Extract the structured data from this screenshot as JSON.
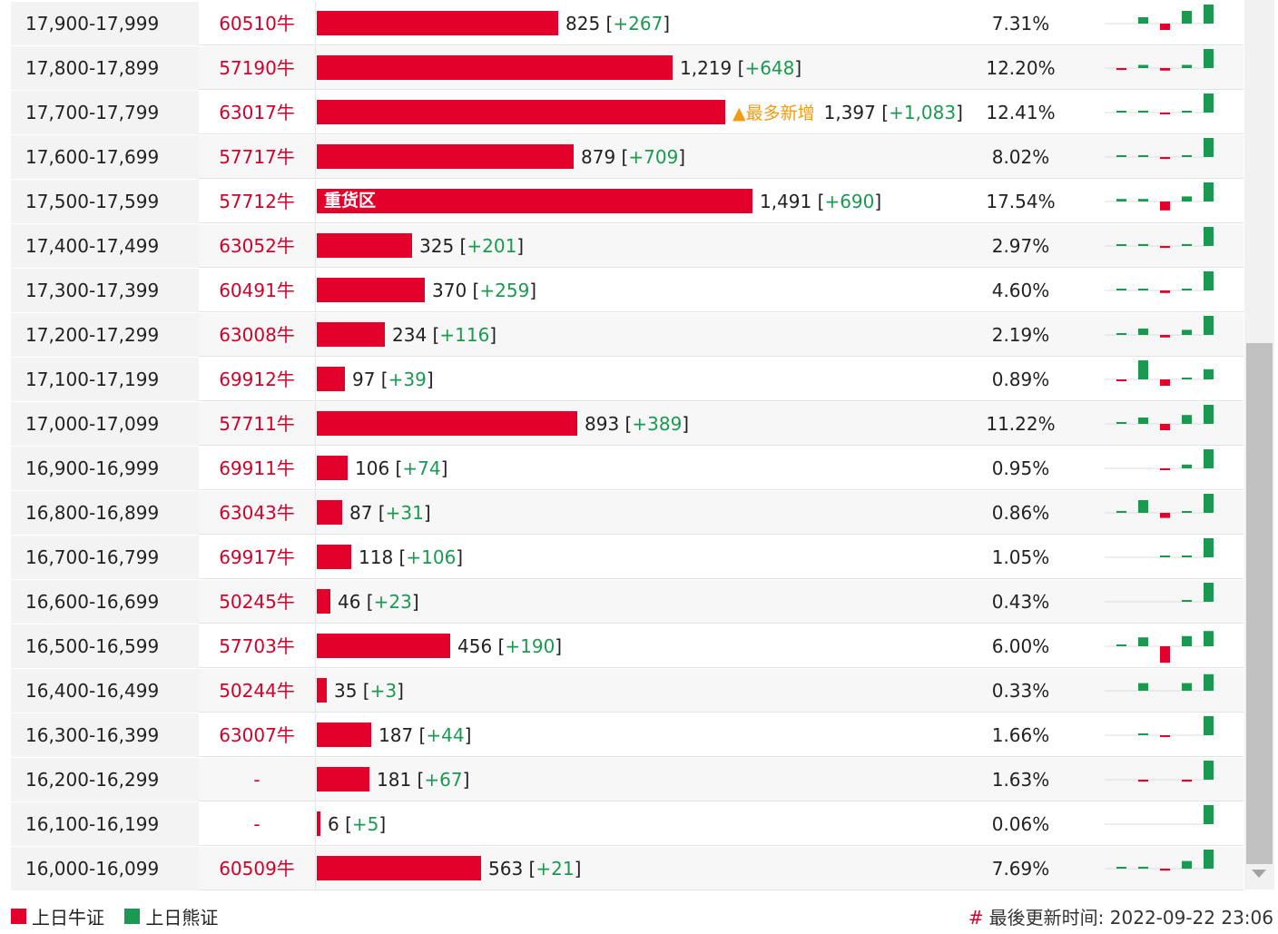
{
  "colors": {
    "bull": "#e3002a",
    "bear": "#1a9a50",
    "most": "#f29b13"
  },
  "rows": [
    {
      "range": "17,900-17,999",
      "code": "60510牛",
      "count": "825",
      "change": "+267",
      "bar": 825,
      "pct": "7.31%",
      "spark": [
        0,
        1,
        -1,
        2,
        3
      ]
    },
    {
      "range": "17,800-17,899",
      "code": "57190牛",
      "count": "1,219",
      "change": "+648",
      "bar": 1219,
      "pct": "12.20%",
      "spark": [
        -0.3,
        0.5,
        -0.4,
        0.5,
        3
      ]
    },
    {
      "range": "17,700-17,799",
      "code": "63017牛",
      "count": "1,397",
      "change": "+1,083",
      "bar": 1397,
      "pct": "12.41%",
      "most": "▲最多新增",
      "spark": [
        0.2,
        0.3,
        -0.2,
        0.2,
        3
      ]
    },
    {
      "range": "17,600-17,699",
      "code": "57717牛",
      "count": "879",
      "change": "+709",
      "bar": 879,
      "pct": "8.02%",
      "spark": [
        0.2,
        0.2,
        -0.3,
        0.2,
        3
      ]
    },
    {
      "range": "17,500-17,599",
      "code": "57712牛",
      "count": "1,491",
      "change": "+690",
      "bar": 1491,
      "pct": "17.54%",
      "zone": "重货区",
      "spark": [
        0.4,
        0.4,
        -1.4,
        0.8,
        3
      ]
    },
    {
      "range": "17,400-17,499",
      "code": "63052牛",
      "count": "325",
      "change": "+201",
      "bar": 325,
      "pct": "2.97%",
      "spark": [
        0.2,
        0.3,
        -0.3,
        0.3,
        3
      ]
    },
    {
      "range": "17,300-17,399",
      "code": "60491牛",
      "count": "370",
      "change": "+259",
      "bar": 370,
      "pct": "4.60%",
      "spark": [
        0.2,
        0.2,
        -0.4,
        0.2,
        3
      ]
    },
    {
      "range": "17,200-17,299",
      "code": "63008牛",
      "count": "234",
      "change": "+116",
      "bar": 234,
      "pct": "2.19%",
      "spark": [
        0.2,
        1,
        -0.4,
        0.8,
        3
      ]
    },
    {
      "range": "17,100-17,199",
      "code": "69912牛",
      "count": "97",
      "change": "+39",
      "bar": 97,
      "pct": "0.89%",
      "spark": [
        -0.2,
        3,
        -1,
        0.2,
        1.6
      ]
    },
    {
      "range": "17,000-17,099",
      "code": "57711牛",
      "count": "893",
      "change": "+389",
      "bar": 893,
      "pct": "11.22%",
      "spark": [
        0.2,
        1,
        -1,
        1.4,
        3
      ]
    },
    {
      "range": "16,900-16,999",
      "code": "69911牛",
      "count": "106",
      "change": "+74",
      "bar": 106,
      "pct": "0.95%",
      "spark": [
        0,
        0,
        -0.2,
        0.6,
        3
      ]
    },
    {
      "range": "16,800-16,899",
      "code": "63043牛",
      "count": "87",
      "change": "+31",
      "bar": 87,
      "pct": "0.86%",
      "spark": [
        0.3,
        2,
        -0.8,
        0.2,
        3
      ]
    },
    {
      "range": "16,700-16,799",
      "code": "69917牛",
      "count": "118",
      "change": "+106",
      "bar": 118,
      "pct": "1.05%",
      "spark": [
        0,
        0,
        0.2,
        0.2,
        3
      ]
    },
    {
      "range": "16,600-16,699",
      "code": "50245牛",
      "count": "46",
      "change": "+23",
      "bar": 46,
      "pct": "0.43%",
      "spark": [
        0,
        0,
        0,
        0.2,
        3
      ]
    },
    {
      "range": "16,500-16,599",
      "code": "57703牛",
      "count": "456",
      "change": "+190",
      "bar": 456,
      "pct": "6.00%",
      "spark": [
        0.2,
        1.4,
        -2.6,
        1.6,
        2.4
      ]
    },
    {
      "range": "16,400-16,499",
      "code": "50244牛",
      "count": "35",
      "change": "+3",
      "bar": 35,
      "pct": "0.33%",
      "spark": [
        0,
        1.2,
        0,
        1.2,
        2.6
      ]
    },
    {
      "range": "16,300-16,399",
      "code": "63007牛",
      "count": "187",
      "change": "+44",
      "bar": 187,
      "pct": "1.66%",
      "spark": [
        0,
        0.2,
        -0.2,
        0,
        3
      ]
    },
    {
      "range": "16,200-16,299",
      "code": "-",
      "count": "181",
      "change": "+67",
      "bar": 181,
      "pct": "1.63%",
      "spark": [
        0,
        -0.3,
        0,
        -0.3,
        3
      ]
    },
    {
      "range": "16,100-16,199",
      "code": "-",
      "count": "6",
      "change": "+5",
      "bar": 6,
      "pct": "0.06%",
      "spark": [
        0,
        0,
        0,
        0,
        3
      ]
    },
    {
      "range": "16,000-16,099",
      "code": "60509牛",
      "count": "563",
      "change": "+21",
      "bar": 563,
      "pct": "7.69%",
      "spark": [
        0.2,
        0.3,
        -0.3,
        1.2,
        3
      ]
    }
  ],
  "legend": {
    "bull_label": "上日牛证",
    "bear_label": "上日熊证"
  },
  "footer": {
    "hash": "#",
    "update_text": "最後更新时间: 2022-09-22 23:06"
  }
}
